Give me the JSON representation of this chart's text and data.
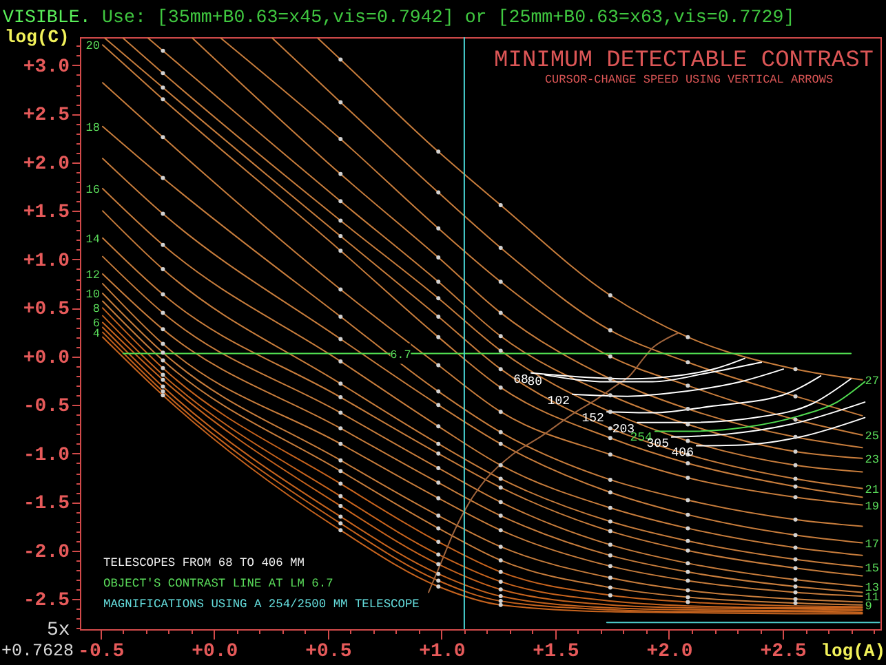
{
  "chart_data": {
    "type": "line",
    "title": "MINIMUM DETECTABLE CONTRAST",
    "subtitle": "CURSOR-CHANGE SPEED USING VERTICAL ARROWS",
    "xlabel": "log(A)",
    "ylabel": "log(C)",
    "xlim": [
      -0.59,
      2.93
    ],
    "ylim": [
      -2.81,
      3.29
    ],
    "xticks": [
      {
        "value": -0.5,
        "label": "-0.5"
      },
      {
        "value": -0.4,
        "label": null
      },
      {
        "value": -0.3,
        "label": null
      },
      {
        "value": -0.2,
        "label": null
      },
      {
        "value": -0.1,
        "label": null
      },
      {
        "value": 0.0,
        "label": "+0.0"
      },
      {
        "value": 0.1,
        "label": null
      },
      {
        "value": 0.2,
        "label": null
      },
      {
        "value": 0.3,
        "label": null
      },
      {
        "value": 0.4,
        "label": null
      },
      {
        "value": 0.5,
        "label": "+0.5"
      },
      {
        "value": 0.6,
        "label": null
      },
      {
        "value": 0.7,
        "label": null
      },
      {
        "value": 0.8,
        "label": null
      },
      {
        "value": 0.9,
        "label": null
      },
      {
        "value": 1.0,
        "label": "+1.0"
      },
      {
        "value": 1.1,
        "label": null
      },
      {
        "value": 1.2,
        "label": null
      },
      {
        "value": 1.3,
        "label": null
      },
      {
        "value": 1.4,
        "label": null
      },
      {
        "value": 1.5,
        "label": "+1.5"
      },
      {
        "value": 1.6,
        "label": null
      },
      {
        "value": 1.7,
        "label": null
      },
      {
        "value": 1.8,
        "label": null
      },
      {
        "value": 1.9,
        "label": null
      },
      {
        "value": 2.0,
        "label": "+2.0"
      },
      {
        "value": 2.1,
        "label": null
      },
      {
        "value": 2.2,
        "label": null
      },
      {
        "value": 2.3,
        "label": null
      },
      {
        "value": 2.4,
        "label": null
      },
      {
        "value": 2.5,
        "label": "+2.5"
      },
      {
        "value": 2.6,
        "label": null
      },
      {
        "value": 2.7,
        "label": null
      },
      {
        "value": 2.8,
        "label": null
      },
      {
        "value": 2.9,
        "label": null
      }
    ],
    "yticks": [
      {
        "value": -2.8,
        "label": null
      },
      {
        "value": -2.7,
        "label": null
      },
      {
        "value": -2.6,
        "label": null
      },
      {
        "value": -2.5,
        "label": "-2.5"
      },
      {
        "value": -2.4,
        "label": null
      },
      {
        "value": -2.3,
        "label": null
      },
      {
        "value": -2.2,
        "label": null
      },
      {
        "value": -2.1,
        "label": null
      },
      {
        "value": -2.0,
        "label": "-2.0"
      },
      {
        "value": -1.9,
        "label": null
      },
      {
        "value": -1.8,
        "label": null
      },
      {
        "value": -1.7,
        "label": null
      },
      {
        "value": -1.6,
        "label": null
      },
      {
        "value": -1.5,
        "label": "-1.5"
      },
      {
        "value": -1.4,
        "label": null
      },
      {
        "value": -1.3,
        "label": null
      },
      {
        "value": -1.2,
        "label": null
      },
      {
        "value": -1.1,
        "label": null
      },
      {
        "value": -1.0,
        "label": "-1.0"
      },
      {
        "value": -0.9,
        "label": null
      },
      {
        "value": -0.8,
        "label": null
      },
      {
        "value": -0.7,
        "label": null
      },
      {
        "value": -0.6,
        "label": null
      },
      {
        "value": -0.5,
        "label": "-0.5"
      },
      {
        "value": -0.4,
        "label": null
      },
      {
        "value": -0.3,
        "label": null
      },
      {
        "value": -0.2,
        "label": null
      },
      {
        "value": -0.1,
        "label": null
      },
      {
        "value": 0.0,
        "label": "+0.0"
      },
      {
        "value": 0.1,
        "label": null
      },
      {
        "value": 0.2,
        "label": null
      },
      {
        "value": 0.3,
        "label": null
      },
      {
        "value": 0.4,
        "label": null
      },
      {
        "value": 0.5,
        "label": "+0.5"
      },
      {
        "value": 0.6,
        "label": null
      },
      {
        "value": 0.7,
        "label": null
      },
      {
        "value": 0.8,
        "label": null
      },
      {
        "value": 0.9,
        "label": null
      },
      {
        "value": 1.0,
        "label": "+1.0"
      },
      {
        "value": 1.1,
        "label": null
      },
      {
        "value": 1.2,
        "label": null
      },
      {
        "value": 1.3,
        "label": null
      },
      {
        "value": 1.4,
        "label": null
      },
      {
        "value": 1.5,
        "label": "+1.5"
      },
      {
        "value": 1.6,
        "label": null
      },
      {
        "value": 1.7,
        "label": null
      },
      {
        "value": 1.8,
        "label": null
      },
      {
        "value": 1.9,
        "label": null
      },
      {
        "value": 2.0,
        "label": "+2.0"
      },
      {
        "value": 2.1,
        "label": null
      },
      {
        "value": 2.2,
        "label": null
      },
      {
        "value": 2.3,
        "label": null
      },
      {
        "value": 2.4,
        "label": null
      },
      {
        "value": 2.5,
        "label": "+2.5"
      },
      {
        "value": 2.6,
        "label": null
      },
      {
        "value": 2.7,
        "label": null
      },
      {
        "value": 2.8,
        "label": null
      },
      {
        "value": 2.9,
        "label": null
      },
      {
        "value": 3.0,
        "label": "+3.0"
      },
      {
        "value": 3.1,
        "label": null
      },
      {
        "value": 3.2,
        "label": null
      }
    ],
    "grid": false,
    "legend": false,
    "ref_lines": [
      {
        "axis": "x",
        "value": 1.1,
        "color": "#48d4d4"
      }
    ],
    "annotations": [
      "VISIBLE.",
      "Use: [35mm+B0.63=x45,vis=0.7942] or [25mm+B0.63=x63,vis=0.7729]",
      "TELESCOPES FROM 68 TO 406 MM",
      "OBJECT'S CONTRAST LINE AT LM 6.7",
      "MAGNIFICATIONS USING A 254/2500 MM TELESCOPE",
      "5x",
      "+0.7628",
      {
        "text": "20",
        "x": -0.49,
        "y": 3.21
      },
      {
        "text": "18",
        "x": -0.49,
        "y": 2.37
      },
      {
        "text": "16",
        "x": -0.49,
        "y": 1.73
      },
      {
        "text": "14",
        "x": -0.49,
        "y": 1.22
      },
      {
        "text": "12",
        "x": -0.49,
        "y": 0.85
      },
      {
        "text": "10",
        "x": -0.49,
        "y": 0.65
      },
      {
        "text": "8",
        "x": -0.49,
        "y": 0.5
      },
      {
        "text": "6",
        "x": -0.49,
        "y": 0.35
      },
      {
        "text": "4",
        "x": -0.49,
        "y": 0.25
      },
      {
        "text": "27",
        "x": 2.85,
        "y": -0.24
      },
      {
        "text": "25",
        "x": 2.85,
        "y": -0.81
      },
      {
        "text": "23",
        "x": 2.85,
        "y": -1.05
      },
      {
        "text": "21",
        "x": 2.85,
        "y": -1.36
      },
      {
        "text": "19",
        "x": 2.85,
        "y": -1.53
      },
      {
        "text": "17",
        "x": 2.85,
        "y": -1.92
      },
      {
        "text": "15",
        "x": 2.85,
        "y": -2.17
      },
      {
        "text": "13",
        "x": 2.85,
        "y": -2.37
      },
      {
        "text": "11",
        "x": 2.85,
        "y": -2.47
      },
      {
        "text": "9",
        "x": 2.85,
        "y": -2.56
      },
      {
        "text": "6.7",
        "x": 0.82,
        "y": 0.03
      }
    ],
    "series": [
      {
        "color": "#c8641e",
        "x": [
          -0.49,
          -0.225,
          0.556,
          0.986,
          1.26,
          1.742,
          2.083,
          2.556,
          2.85
        ],
        "values": [
          0.2,
          -0.4,
          -1.79,
          -2.37,
          -2.56,
          -2.63,
          -2.64,
          -2.65,
          -2.65
        ]
      },
      {
        "color": "#c8641e",
        "x": [
          -0.49,
          -0.225,
          0.556,
          0.986,
          1.26,
          1.742,
          2.083,
          2.556,
          2.85
        ],
        "values": [
          0.25,
          -0.36,
          -1.72,
          -2.31,
          -2.52,
          -2.61,
          -2.63,
          -2.63,
          -2.64
        ]
      },
      {
        "color": "#c8641e",
        "x": [
          -0.49,
          -0.225,
          0.556,
          0.986,
          1.26,
          1.742,
          2.083,
          2.556,
          2.85
        ],
        "values": [
          0.3,
          -0.31,
          -1.65,
          -2.24,
          -2.47,
          -2.59,
          -2.61,
          -2.62,
          -2.62
        ]
      },
      {
        "color": "#c8641e",
        "x": [
          -0.49,
          -0.225,
          0.556,
          0.986,
          1.26,
          1.742,
          2.083,
          2.556,
          2.85
        ],
        "values": [
          0.35,
          -0.24,
          -1.54,
          -2.14,
          -2.4,
          -2.56,
          -2.59,
          -2.6,
          -2.61
        ]
      },
      {
        "color": "#c8641e",
        "x": [
          -0.49,
          -0.225,
          0.556,
          0.986,
          1.26,
          1.742,
          2.083,
          2.556,
          2.85
        ],
        "values": [
          0.42,
          -0.19,
          -1.44,
          -2.04,
          -2.32,
          -2.52,
          -2.57,
          -2.59,
          -2.59
        ]
      },
      {
        "color": "#c8641e",
        "x": [
          -0.49,
          -0.225,
          0.556,
          0.986,
          1.26,
          1.742,
          2.083,
          2.556,
          2.85
        ],
        "values": [
          0.5,
          -0.12,
          -1.31,
          -1.91,
          -2.22,
          -2.46,
          -2.53,
          -2.57,
          -2.58
        ]
      },
      {
        "color": "#c87d3c",
        "x": [
          -0.49,
          -0.225,
          0.556,
          0.986,
          1.26,
          1.742,
          2.083,
          2.556,
          2.85
        ],
        "values": [
          0.57,
          -0.04,
          -1.18,
          -1.77,
          -2.1,
          -2.38,
          -2.48,
          -2.54,
          -2.56
        ]
      },
      {
        "color": "#c87d3c",
        "x": [
          -0.49,
          -0.225,
          0.556,
          0.986,
          1.26,
          1.742,
          2.083,
          2.556,
          2.85
        ],
        "values": [
          0.65,
          0.04,
          -1.07,
          -1.64,
          -1.96,
          -2.28,
          -2.41,
          -2.5,
          -2.53
        ]
      },
      {
        "color": "#c87d3c",
        "x": [
          -0.49,
          -0.225,
          0.556,
          0.986,
          1.26,
          1.742,
          2.083,
          2.556,
          2.85
        ],
        "values": [
          0.75,
          0.13,
          -0.9,
          -1.46,
          -1.79,
          -2.16,
          -2.31,
          -2.43,
          -2.47
        ]
      },
      {
        "color": "#c87d3c",
        "x": [
          -0.49,
          -0.225,
          0.556,
          0.986,
          1.26,
          1.742,
          2.083,
          2.556,
          2.85
        ],
        "values": [
          0.85,
          0.28,
          -0.74,
          -1.3,
          -1.64,
          -2.05,
          -2.22,
          -2.37,
          -2.43
        ]
      },
      {
        "color": "#c87d3c",
        "x": [
          -0.49,
          -0.225,
          0.556,
          0.986,
          1.26,
          1.742,
          2.083,
          2.556,
          2.85
        ],
        "values": [
          1.03,
          0.45,
          -0.58,
          -1.15,
          -1.5,
          -1.94,
          -2.13,
          -2.3,
          -2.37
        ]
      },
      {
        "color": "#c87d3c",
        "x": [
          -0.49,
          -0.225,
          0.556,
          0.986,
          1.26,
          1.742,
          2.083,
          2.556,
          2.85
        ],
        "values": [
          1.22,
          0.64,
          -0.42,
          -1.0,
          -1.35,
          -1.8,
          -2.0,
          -2.18,
          -2.26
        ]
      },
      {
        "color": "#c87d3c",
        "x": [
          -0.49,
          -0.225,
          0.556,
          0.986,
          1.26,
          1.742,
          2.083,
          2.556,
          2.85
        ],
        "values": [
          1.5,
          0.9,
          -0.28,
          -0.9,
          -1.26,
          -1.7,
          -1.9,
          -2.09,
          -2.17
        ]
      },
      {
        "color": "#c87d3c",
        "x": [
          -0.49,
          -0.225,
          0.556,
          0.986,
          1.26,
          1.742,
          2.083,
          2.556,
          2.85
        ],
        "values": [
          1.73,
          1.15,
          -0.05,
          -0.72,
          -1.12,
          -1.56,
          -1.77,
          -1.97,
          -2.05
        ]
      },
      {
        "color": "#c87d3c",
        "x": [
          -0.49,
          -0.225,
          0.556,
          0.986,
          1.26,
          1.742,
          2.083,
          2.556,
          2.85
        ],
        "values": [
          2.04,
          1.47,
          0.18,
          -0.5,
          -0.9,
          -1.4,
          -1.63,
          -1.84,
          -1.92
        ]
      },
      {
        "color": "#c87d3c",
        "x": [
          -0.49,
          -0.225,
          0.556,
          0.986,
          1.26,
          1.742,
          2.083,
          2.556,
          2.85
        ],
        "values": [
          2.37,
          1.84,
          0.41,
          -0.36,
          -0.78,
          -1.27,
          -1.48,
          -1.68,
          -1.75
        ]
      },
      {
        "color": "#c87d3c",
        "x": [
          -0.49,
          -0.225,
          0.556,
          0.986,
          1.26,
          1.742,
          2.083,
          2.556,
          2.85
        ],
        "values": [
          2.82,
          2.26,
          0.69,
          -0.09,
          -0.57,
          -1.01,
          -1.25,
          -1.45,
          -1.53
        ]
      },
      {
        "color": "#c87d3c",
        "x": [
          -0.49,
          -0.225,
          0.556,
          0.986,
          1.26,
          1.742,
          2.083,
          2.556,
          2.85
        ],
        "values": [
          3.21,
          2.65,
          1.09,
          0.2,
          -0.32,
          -0.84,
          -1.1,
          -1.34,
          -1.45
        ]
      },
      {
        "color": "#c87d3c",
        "x": [
          -0.48,
          -0.225,
          0.556,
          0.986,
          1.26,
          1.742,
          2.083,
          2.556,
          2.85
        ],
        "values": [
          3.28,
          2.77,
          1.24,
          0.41,
          -0.13,
          -0.74,
          -1.01,
          -1.26,
          -1.36
        ]
      },
      {
        "color": "#c87d3c",
        "x": [
          -0.4,
          -0.225,
          0.556,
          0.986,
          1.26,
          1.742,
          2.083,
          2.556,
          2.85
        ],
        "values": [
          3.28,
          2.92,
          1.4,
          0.6,
          0.06,
          -0.57,
          -0.87,
          -1.12,
          -1.19
        ]
      },
      {
        "color": "#c87d3c",
        "x": [
          -0.29,
          -0.225,
          0.556,
          0.986,
          1.26,
          1.742,
          2.083,
          2.556,
          2.85
        ],
        "values": [
          3.28,
          3.15,
          1.6,
          0.77,
          0.21,
          -0.4,
          -0.7,
          -0.98,
          -1.05
        ]
      },
      {
        "color": "#c87d3c",
        "x": [
          -0.095,
          0.556,
          0.986,
          1.26,
          1.742,
          2.083,
          2.556,
          2.85
        ],
        "values": [
          3.28,
          1.88,
          1.02,
          0.45,
          -0.23,
          -0.54,
          -0.83,
          -0.94
        ]
      },
      {
        "color": "#c87d3c",
        "x": [
          0.03,
          0.556,
          0.986,
          1.26,
          1.742,
          2.083,
          2.556,
          2.85
        ],
        "values": [
          3.28,
          2.24,
          1.32,
          0.77,
          0.0,
          -0.3,
          -0.65,
          -0.81
        ]
      },
      {
        "color": "#c87d3c",
        "x": [
          0.256,
          0.556,
          0.986,
          1.26,
          1.742,
          2.083,
          2.556,
          2.85
        ],
        "values": [
          3.28,
          2.62,
          1.69,
          1.12,
          0.27,
          -0.06,
          -0.41,
          -0.61
        ]
      },
      {
        "color": "#c87d3c",
        "x": [
          0.456,
          0.556,
          0.986,
          1.26,
          1.742,
          2.083,
          2.556,
          2.85
        ],
        "values": [
          3.28,
          3.06,
          2.11,
          1.56,
          0.63,
          0.2,
          -0.13,
          -0.24
        ]
      },
      {
        "color": "#a0643c",
        "x": [
          0.943,
          0.997,
          1.052,
          1.118,
          1.197,
          1.312,
          1.44,
          1.585,
          1.682,
          1.767,
          1.827,
          1.888,
          1.924,
          1.979,
          2.039
        ],
        "values": [
          -2.43,
          -2.13,
          -1.82,
          -1.52,
          -1.26,
          -1.01,
          -0.82,
          -0.58,
          -0.44,
          -0.3,
          -0.2,
          -0.02,
          0.08,
          0.17,
          0.24
        ]
      },
      {
        "color": "#50dc50",
        "x": [
          -0.4,
          2.8
        ],
        "values": [
          0.03,
          0.03
        ]
      },
      {
        "color": "#50d0d0",
        "x": [
          1.727,
          2.925
        ],
        "values": [
          -2.74,
          -2.74
        ]
      },
      {
        "name": "68",
        "color": "#ffffff",
        "x": [
          1.394,
          1.606,
          1.836,
          2.03,
          2.212,
          2.333
        ],
        "values": [
          -0.17,
          -0.21,
          -0.23,
          -0.2,
          -0.12,
          -0.02
        ]
      },
      {
        "name": "80",
        "color": "#ffffff",
        "x": [
          1.455,
          1.727,
          1.927,
          2.17,
          2.406
        ],
        "values": [
          -0.19,
          -0.26,
          -0.26,
          -0.17,
          -0.06
        ]
      },
      {
        "name": "102",
        "color": "#ffffff",
        "x": [
          1.576,
          1.818,
          2.03,
          2.315,
          2.503
        ],
        "values": [
          -0.39,
          -0.41,
          -0.37,
          -0.26,
          -0.13
        ]
      },
      {
        "name": "152",
        "color": "#ffffff",
        "x": [
          1.727,
          1.927,
          2.194,
          2.497,
          2.667
        ],
        "values": [
          -0.57,
          -0.58,
          -0.51,
          -0.4,
          -0.2
        ]
      },
      {
        "name": "203",
        "color": "#ffffff",
        "x": [
          1.861,
          2.091,
          2.376,
          2.636,
          2.8
        ],
        "values": [
          -0.68,
          -0.68,
          -0.63,
          -0.48,
          -0.23
        ]
      },
      {
        "name": "254",
        "color": "#50dc50",
        "x": [
          1.939,
          2.091,
          2.333,
          2.576,
          2.739,
          2.861
        ],
        "values": [
          -0.77,
          -0.77,
          -0.73,
          -0.61,
          -0.47,
          -0.26
        ]
      },
      {
        "name": "305",
        "color": "#ffffff",
        "x": [
          2.012,
          2.255,
          2.533,
          2.861
        ],
        "values": [
          -0.83,
          -0.8,
          -0.7,
          -0.47
        ]
      },
      {
        "name": "406",
        "color": "#ffffff",
        "x": [
          2.121,
          2.333,
          2.576,
          2.861
        ],
        "values": [
          -0.92,
          -0.91,
          -0.83,
          -0.63
        ]
      },
      {
        "type": "scatter",
        "color": "#d2d2d2",
        "x": [
          -0.225,
          0.556,
          0.986,
          1.26,
          -0.225,
          0.556,
          0.986,
          1.26,
          -0.225,
          0.556,
          0.986,
          1.26,
          -0.225,
          0.556,
          0.986,
          1.26,
          -0.225,
          0.556,
          0.986,
          1.26,
          -0.225,
          0.556,
          0.986,
          1.26,
          1.742,
          2.083,
          -0.225,
          0.556,
          0.986,
          1.26,
          1.742,
          2.083,
          2.556,
          -0.225,
          0.556,
          0.986,
          1.26,
          1.742,
          2.083,
          2.556,
          -0.225,
          0.556,
          0.986,
          1.26,
          1.742,
          2.083,
          2.556,
          -0.225,
          0.556,
          0.986,
          1.26,
          1.742,
          2.083,
          2.556,
          -0.225,
          0.556,
          0.986,
          1.26,
          1.742,
          2.083,
          2.556,
          -0.225,
          0.556,
          0.986,
          1.26,
          1.742,
          2.083,
          2.556,
          -0.225,
          0.556,
          0.986,
          1.26,
          1.742,
          2.083,
          2.556,
          -0.225,
          0.556,
          0.986,
          1.26,
          1.742,
          2.083,
          2.556,
          -0.225,
          0.556,
          0.986,
          1.26,
          1.742,
          2.083,
          2.556,
          -0.225,
          0.556,
          0.986,
          1.26,
          1.742,
          2.083,
          2.556,
          -0.225,
          0.556,
          0.986,
          1.26,
          1.742,
          2.083,
          2.556,
          -0.225,
          0.556,
          0.986,
          1.26,
          1.742,
          2.083,
          2.556,
          -0.225,
          0.556,
          0.986,
          1.26,
          1.742,
          2.083,
          2.556,
          -0.225,
          0.556,
          0.986,
          1.26,
          1.742,
          2.083,
          2.556,
          -0.225,
          0.556,
          0.986,
          1.26,
          1.742,
          2.083,
          2.556,
          0.556,
          0.986,
          1.26,
          1.742,
          2.083,
          2.556,
          0.556,
          0.986,
          1.26,
          1.742,
          2.083,
          2.556,
          0.556,
          0.986,
          1.26,
          1.742,
          2.083,
          2.556,
          0.556,
          0.986,
          1.26,
          1.742,
          2.083,
          2.556
        ],
        "values": [
          -0.4,
          -1.79,
          -2.37,
          -2.56,
          -0.36,
          -1.72,
          -2.31,
          -2.52,
          -0.31,
          -1.65,
          -2.24,
          -2.47,
          -0.24,
          -1.54,
          -2.14,
          -2.4,
          -0.19,
          -1.44,
          -2.04,
          -2.32,
          -0.12,
          -1.31,
          -1.91,
          -2.22,
          -2.46,
          -2.53,
          -0.04,
          -1.18,
          -1.77,
          -2.1,
          -2.38,
          -2.48,
          -2.54,
          0.04,
          -1.07,
          -1.64,
          -1.96,
          -2.28,
          -2.41,
          -2.5,
          0.13,
          -0.9,
          -1.46,
          -1.79,
          -2.16,
          -2.31,
          -2.43,
          0.28,
          -0.74,
          -1.3,
          -1.64,
          -2.05,
          -2.22,
          -2.37,
          0.45,
          -0.58,
          -1.15,
          -1.5,
          -1.94,
          -2.13,
          -2.3,
          0.64,
          -0.42,
          -1.0,
          -1.35,
          -1.8,
          -2.0,
          -2.18,
          0.9,
          -0.28,
          -0.9,
          -1.26,
          -1.7,
          -1.9,
          -2.09,
          1.15,
          -0.05,
          -0.72,
          -1.12,
          -1.56,
          -1.77,
          -1.97,
          1.47,
          0.18,
          -0.5,
          -0.9,
          -1.4,
          -1.63,
          -1.84,
          1.84,
          0.41,
          -0.36,
          -0.78,
          -1.27,
          -1.48,
          -1.68,
          2.26,
          0.69,
          -0.09,
          -0.57,
          -1.01,
          -1.25,
          -1.45,
          2.65,
          1.09,
          0.2,
          -0.32,
          -0.84,
          -1.1,
          -1.34,
          2.77,
          1.24,
          0.41,
          -0.13,
          -0.74,
          -1.01,
          -1.26,
          2.92,
          1.4,
          0.6,
          0.06,
          -0.57,
          -0.87,
          -1.12,
          3.15,
          1.6,
          0.77,
          0.21,
          -0.4,
          -0.7,
          -0.98,
          1.88,
          1.02,
          0.45,
          -0.23,
          -0.54,
          -0.83,
          2.24,
          1.32,
          0.77,
          0.0,
          -0.3,
          -0.65,
          2.62,
          1.69,
          1.12,
          0.27,
          -0.06,
          -0.41,
          3.06,
          2.11,
          1.56,
          0.63,
          0.2,
          -0.13
        ]
      }
    ]
  }
}
